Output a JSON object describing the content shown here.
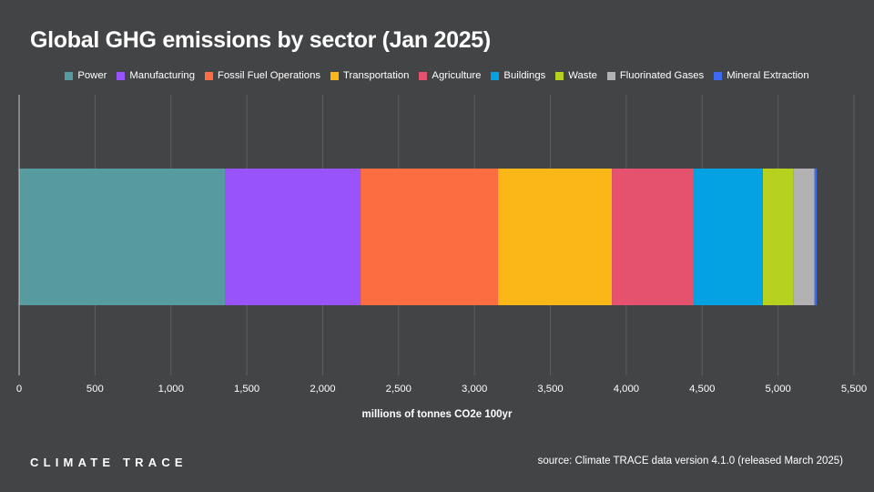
{
  "title": "Global GHG emissions by sector (Jan 2025)",
  "logo_text": "CLIMATE TRACE",
  "source": "source: Climate TRACE data version 4.1.0 (released March 2025)",
  "chart_data": {
    "type": "bar",
    "orientation": "horizontal",
    "stacked": true,
    "title": "Global GHG emissions by sector (Jan 2025)",
    "xlabel": "millions of tonnes CO2e 100yr",
    "ylabel": "",
    "xlim": [
      0,
      5500
    ],
    "xticks": [
      0,
      500,
      1000,
      1500,
      2000,
      2500,
      3000,
      3500,
      4000,
      4500,
      5000,
      5500
    ],
    "xtick_labels": [
      "0",
      "500",
      "1,000",
      "1,500",
      "2,000",
      "2,500",
      "3,000",
      "3,500",
      "4,000",
      "4,500",
      "5,000",
      "5,500"
    ],
    "grid": true,
    "legend_position": "top",
    "series": [
      {
        "name": "Power",
        "value": 1360,
        "color": "#579aa0"
      },
      {
        "name": "Manufacturing",
        "value": 890,
        "color": "#9953fb"
      },
      {
        "name": "Fossil Fuel Operations",
        "value": 905,
        "color": "#fd6d42"
      },
      {
        "name": "Transportation",
        "value": 750,
        "color": "#fbb617"
      },
      {
        "name": "Agriculture",
        "value": 540,
        "color": "#e4526e"
      },
      {
        "name": "Buildings",
        "value": 455,
        "color": "#05a2e3"
      },
      {
        "name": "Waste",
        "value": 200,
        "color": "#b7d121"
      },
      {
        "name": "Fluorinated Gases",
        "value": 140,
        "color": "#b2b2b2"
      },
      {
        "name": "Mineral Extraction",
        "value": 15,
        "color": "#3d6af0"
      }
    ]
  }
}
